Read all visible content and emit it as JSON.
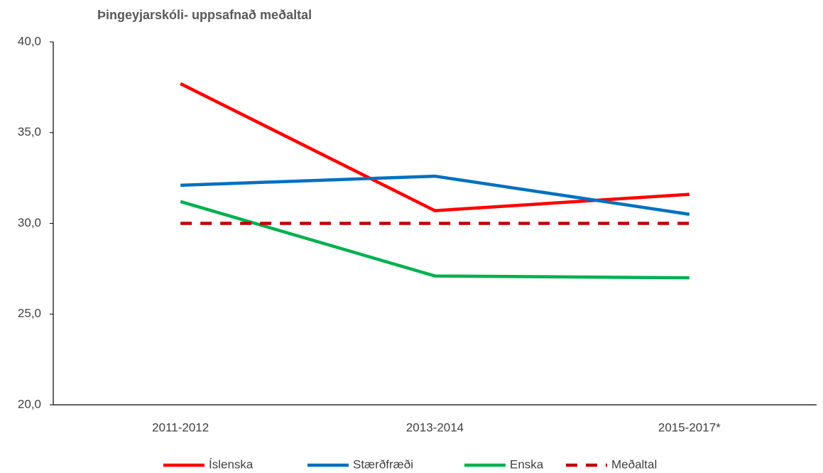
{
  "chart_data": {
    "type": "line",
    "title": "Þingeyjarskóli- uppsafnað meðaltal",
    "categories": [
      "2011-2012",
      "2013-2014",
      "2015-2017*"
    ],
    "series": [
      {
        "name": "Íslenska",
        "color": "#ff0000",
        "values": [
          37.7,
          30.7,
          31.6
        ]
      },
      {
        "name": "Stærðfræði",
        "color": "#0070c0",
        "values": [
          32.1,
          32.6,
          30.5
        ]
      },
      {
        "name": "Enska",
        "color": "#00b050",
        "values": [
          31.2,
          27.1,
          27.0
        ]
      },
      {
        "name": "Meðaltal",
        "color": "#c00000",
        "values": [
          30.0,
          30.0,
          30.0
        ],
        "dashed": true
      }
    ],
    "ylim": [
      20,
      40
    ],
    "yticks": [
      {
        "value": 20,
        "label": "20,0"
      },
      {
        "value": 25,
        "label": "25,0"
      },
      {
        "value": 30,
        "label": "30,0"
      },
      {
        "value": 35,
        "label": "35,0"
      },
      {
        "value": 40,
        "label": "40,0"
      }
    ],
    "grid": false,
    "legend": "bottom"
  }
}
